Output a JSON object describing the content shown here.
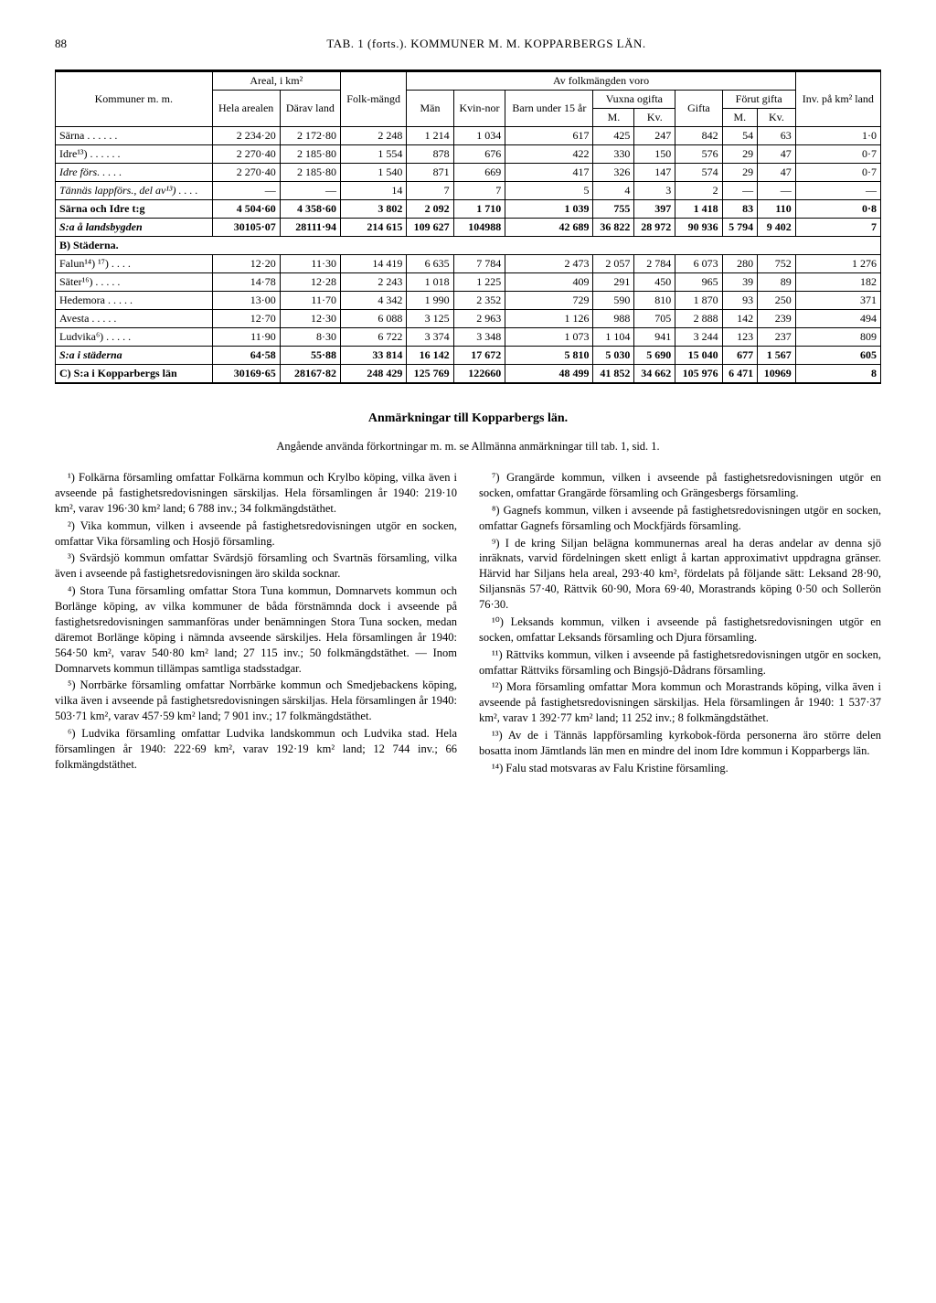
{
  "page_number": "88",
  "header": "TAB. 1 (forts.). KOMMUNER M. M.   KOPPARBERGS LÄN.",
  "table": {
    "head": {
      "c1": "Kommuner m. m.",
      "c2": "Areal, i km²",
      "c2a": "Hela arealen",
      "c2b": "Därav land",
      "c3": "Folk-mängd",
      "c4": "Av folkmängden voro",
      "c4a": "Män",
      "c4b": "Kvin-nor",
      "c4c": "Barn under 15 år",
      "c4d": "Vuxna ogifta",
      "c4d1": "M.",
      "c4d2": "Kv.",
      "c4e": "Gifta",
      "c4f": "Förut gifta",
      "c4f1": "M.",
      "c4f2": "Kv.",
      "c5": "Inv. på km² land"
    },
    "rows": [
      {
        "name": "Särna . . . . . .",
        "a": "2 234·20",
        "b": "2 172·80",
        "c": "2 248",
        "d": "1 214",
        "e": "1 034",
        "f": "617",
        "g": "425",
        "h": "247",
        "i": "842",
        "j": "54",
        "k": "63",
        "l": "1·0"
      },
      {
        "name": "Idre¹³) . . . . . .",
        "a": "2 270·40",
        "b": "2 185·80",
        "c": "1 554",
        "d": "878",
        "e": "676",
        "f": "422",
        "g": "330",
        "h": "150",
        "i": "576",
        "j": "29",
        "k": "47",
        "l": "0·7"
      },
      {
        "name": "Idre förs. . . . .",
        "italic": true,
        "a": "2 270·40",
        "b": "2 185·80",
        "c": "1 540",
        "d": "871",
        "e": "669",
        "f": "417",
        "g": "326",
        "h": "147",
        "i": "574",
        "j": "29",
        "k": "47",
        "l": "0·7"
      },
      {
        "name": "Tännäs lappförs., del av¹³) . . . .",
        "italic": true,
        "a": "—",
        "b": "—",
        "c": "14",
        "d": "7",
        "e": "7",
        "f": "5",
        "g": "4",
        "h": "3",
        "i": "2",
        "j": "—",
        "k": "—",
        "l": "—"
      },
      {
        "name": "Särna och Idre t:g",
        "a": "4 504·60",
        "b": "4 358·60",
        "c": "3 802",
        "d": "2 092",
        "e": "1 710",
        "f": "1 039",
        "g": "755",
        "h": "397",
        "i": "1 418",
        "j": "83",
        "k": "110",
        "l": "0·8",
        "bold": true
      },
      {
        "name": "S:a å landsbygden",
        "a": "30105·07",
        "b": "28111·94",
        "c": "214 615",
        "d": "109 627",
        "e": "104988",
        "f": "42 689",
        "g": "36 822",
        "h": "28 972",
        "i": "90 936",
        "j": "5 794",
        "k": "9 402",
        "l": "7",
        "bold": true,
        "italic": true
      }
    ],
    "section_b": "B) Städerna.",
    "rows_b": [
      {
        "name": "Falun¹⁴) ¹⁷) . . . .",
        "a": "12·20",
        "b": "11·30",
        "c": "14 419",
        "d": "6 635",
        "e": "7 784",
        "f": "2 473",
        "g": "2 057",
        "h": "2 784",
        "i": "6 073",
        "j": "280",
        "k": "752",
        "l": "1 276"
      },
      {
        "name": "Säter¹⁶) . . . . .",
        "a": "14·78",
        "b": "12·28",
        "c": "2 243",
        "d": "1 018",
        "e": "1 225",
        "f": "409",
        "g": "291",
        "h": "450",
        "i": "965",
        "j": "39",
        "k": "89",
        "l": "182"
      },
      {
        "name": "Hedemora . . . . .",
        "a": "13·00",
        "b": "11·70",
        "c": "4 342",
        "d": "1 990",
        "e": "2 352",
        "f": "729",
        "g": "590",
        "h": "810",
        "i": "1 870",
        "j": "93",
        "k": "250",
        "l": "371"
      },
      {
        "name": "Avesta . . . . .",
        "a": "12·70",
        "b": "12·30",
        "c": "6 088",
        "d": "3 125",
        "e": "2 963",
        "f": "1 126",
        "g": "988",
        "h": "705",
        "i": "2 888",
        "j": "142",
        "k": "239",
        "l": "494"
      },
      {
        "name": "Ludvika⁶) . . . . .",
        "a": "11·90",
        "b": "8·30",
        "c": "6 722",
        "d": "3 374",
        "e": "3 348",
        "f": "1 073",
        "g": "1 104",
        "h": "941",
        "i": "3 244",
        "j": "123",
        "k": "237",
        "l": "809"
      },
      {
        "name": "S:a i städerna",
        "a": "64·58",
        "b": "55·88",
        "c": "33 814",
        "d": "16 142",
        "e": "17 672",
        "f": "5 810",
        "g": "5 030",
        "h": "5 690",
        "i": "15 040",
        "j": "677",
        "k": "1 567",
        "l": "605",
        "bold": true,
        "italic": true
      }
    ],
    "section_c": "C) S:a i Kopparbergs län",
    "row_c": {
      "a": "30169·65",
      "b": "28167·82",
      "c": "248 429",
      "d": "125 769",
      "e": "122660",
      "f": "48 499",
      "g": "41 852",
      "h": "34 662",
      "i": "105 976",
      "j": "6 471",
      "k": "10969",
      "l": "8"
    }
  },
  "notes_title": "Anmärkningar till Kopparbergs län.",
  "notes_intro": "Angående använda förkortningar m. m. se Allmänna anmärkningar till tab. 1, sid. 1.",
  "footnotes": [
    "¹) Folkärna församling omfattar Folkärna kommun och Krylbo köping, vilka även i avseende på fastighetsredovisningen särskiljas. Hela församlingen år 1940: 219·10 km², varav 196·30 km² land; 6 788 inv.; 34 folkmängdstäthet.",
    "²) Vika kommun, vilken i avseende på fastighetsredovisningen utgör en socken, omfattar Vika församling och Hosjö församling.",
    "³) Svärdsjö kommun omfattar Svärdsjö församling och Svartnäs församling, vilka även i avseende på fastighetsredovisningen äro skilda socknar.",
    "⁴) Stora Tuna församling omfattar Stora Tuna kommun, Domnarvets kommun och Borlänge köping, av vilka kommuner de båda förstnämnda dock i avseende på fastighetsredovisningen sammanföras under benämningen Stora Tuna socken, medan däremot Borlänge köping i nämnda avseende särskiljes. Hela församlingen år 1940: 564·50 km², varav 540·80 km² land; 27 115 inv.; 50 folkmängdstäthet. — Inom Domnarvets kommun tillämpas samtliga stadsstadgar.",
    "⁵) Norrbärke församling omfattar Norrbärke kommun och Smedjebackens köping, vilka även i avseende på fastighetsredovisningen särskiljas. Hela församlingen år 1940: 503·71 km², varav 457·59 km² land; 7 901 inv.; 17 folkmängdstäthet.",
    "⁶) Ludvika församling omfattar Ludvika landskommun och Ludvika stad. Hela församlingen år 1940: 222·69 km², varav 192·19 km² land; 12 744 inv.; 66 folkmängdstäthet.",
    "⁷) Grangärde kommun, vilken i avseende på fastighetsredovisningen utgör en socken, omfattar Grangärde församling och Grängesbergs församling.",
    "⁸) Gagnefs kommun, vilken i avseende på fastighetsredovisningen utgör en socken, omfattar Gagnefs församling och Mockfjärds församling.",
    "⁹) I de kring Siljan belägna kommunernas areal ha deras andelar av denna sjö inräknats, varvid fördelningen skett enligt å kartan approximativt uppdragna gränser. Härvid har Siljans hela areal, 293·40 km², fördelats på följande sätt: Leksand 28·90, Siljansnäs 57·40, Rättvik 60·90, Mora 69·40, Morastrands köping 0·50 och Sollerön 76·30.",
    "¹⁰) Leksands kommun, vilken i avseende på fastighetsredovisningen utgör en socken, omfattar Leksands församling och Djura församling.",
    "¹¹) Rättviks kommun, vilken i avseende på fastighetsredovisningen utgör en socken, omfattar Rättviks församling och Bingsjö-Dådrans församling.",
    "¹²) Mora församling omfattar Mora kommun och Morastrands köping, vilka även i avseende på fastighetsredovisningen särskiljas. Hela församlingen år 1940: 1 537·37 km², varav 1 392·77 km² land; 11 252 inv.; 8 folkmängdstäthet.",
    "¹³) Av de i Tännäs lappförsamling kyrkobok-förda personerna äro större delen bosatta inom Jämtlands län men en mindre del inom Idre kommun i Kopparbergs län.",
    "¹⁴) Falu stad motsvaras av Falu Kristine församling."
  ]
}
